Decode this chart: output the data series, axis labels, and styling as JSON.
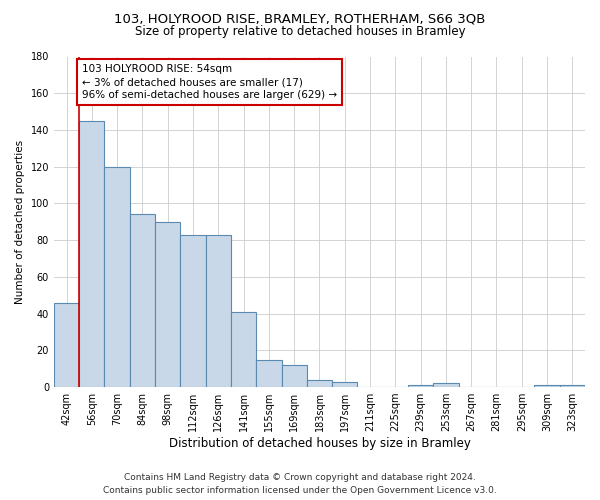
{
  "title1": "103, HOLYROOD RISE, BRAMLEY, ROTHERHAM, S66 3QB",
  "title2": "Size of property relative to detached houses in Bramley",
  "xlabel": "Distribution of detached houses by size in Bramley",
  "ylabel": "Number of detached properties",
  "categories": [
    "42sqm",
    "56sqm",
    "70sqm",
    "84sqm",
    "98sqm",
    "112sqm",
    "126sqm",
    "141sqm",
    "155sqm",
    "169sqm",
    "183sqm",
    "197sqm",
    "211sqm",
    "225sqm",
    "239sqm",
    "253sqm",
    "267sqm",
    "281sqm",
    "295sqm",
    "309sqm",
    "323sqm"
  ],
  "values": [
    46,
    145,
    120,
    94,
    90,
    83,
    83,
    41,
    15,
    12,
    4,
    3,
    0,
    0,
    1,
    2,
    0,
    0,
    0,
    1,
    1
  ],
  "bar_color": "#c8d8e8",
  "bar_edge_color": "#5a8ab0",
  "annotation_text_line1": "103 HOLYROOD RISE: 54sqm",
  "annotation_text_line2": "← 3% of detached houses are smaller (17)",
  "annotation_text_line3": "96% of semi-detached houses are larger (629) →",
  "red_line_color": "#cc0000",
  "annotation_box_edge_color": "#cc0000",
  "footer_line1": "Contains HM Land Registry data © Crown copyright and database right 2024.",
  "footer_line2": "Contains public sector information licensed under the Open Government Licence v3.0.",
  "ylim": [
    0,
    180
  ],
  "yticks": [
    0,
    20,
    40,
    60,
    80,
    100,
    120,
    140,
    160,
    180
  ],
  "bg_color": "#ffffff",
  "grid_color": "#cccccc",
  "title1_fontsize": 9.5,
  "title2_fontsize": 8.5,
  "xlabel_fontsize": 8.5,
  "ylabel_fontsize": 7.5,
  "tick_fontsize": 7,
  "footer_fontsize": 6.5,
  "annotation_fontsize": 7.5
}
